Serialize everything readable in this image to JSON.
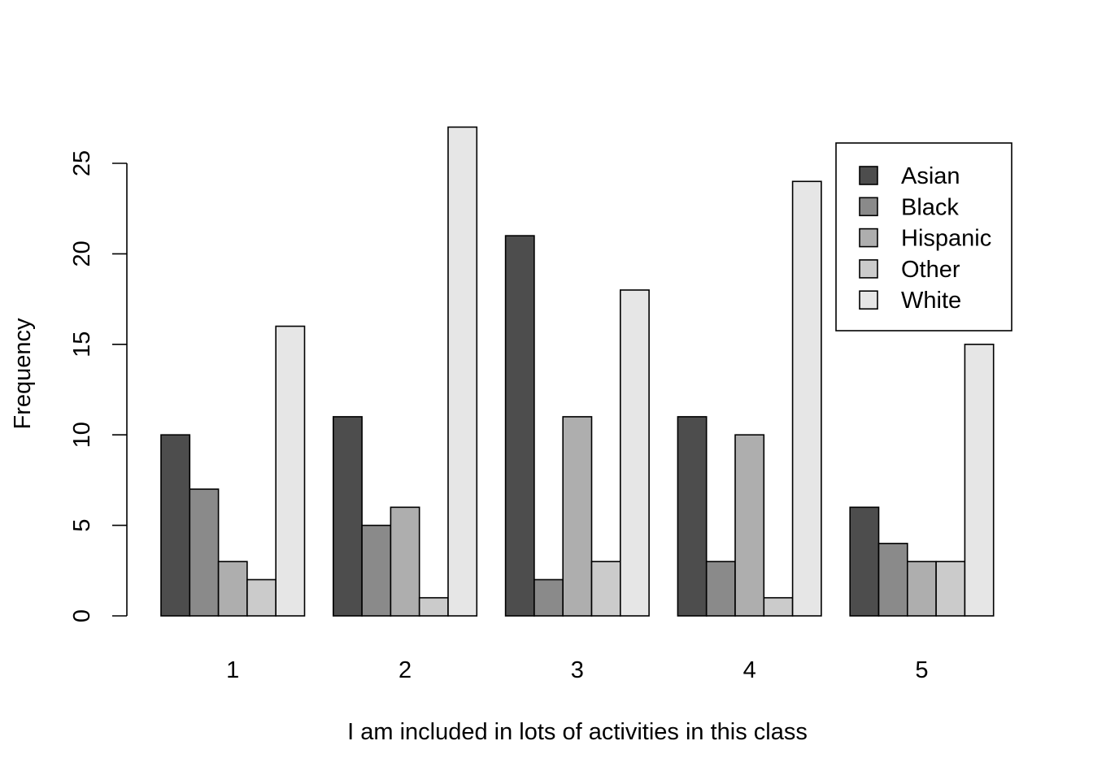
{
  "chart_data": {
    "type": "bar",
    "title": "",
    "xlabel": "I am included in lots of activities in this class",
    "ylabel": "Frequency",
    "ylim": [
      0,
      27
    ],
    "y_ticks": [
      0,
      5,
      10,
      15,
      20,
      25
    ],
    "categories": [
      "1",
      "2",
      "3",
      "4",
      "5"
    ],
    "series": [
      {
        "name": "Asian",
        "color": "#4d4d4d",
        "values": [
          10,
          11,
          21,
          11,
          6
        ]
      },
      {
        "name": "Black",
        "color": "#8a8a8a",
        "values": [
          7,
          5,
          2,
          3,
          4
        ]
      },
      {
        "name": "Hispanic",
        "color": "#aeaeae",
        "values": [
          3,
          6,
          11,
          10,
          3
        ]
      },
      {
        "name": "Other",
        "color": "#cbcbcb",
        "values": [
          2,
          1,
          3,
          1,
          3
        ]
      },
      {
        "name": "White",
        "color": "#e6e6e6",
        "values": [
          16,
          27,
          18,
          24,
          15
        ]
      }
    ],
    "grid": false,
    "legend_position": "top-right"
  }
}
